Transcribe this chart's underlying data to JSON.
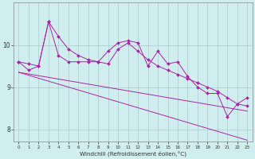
{
  "x": [
    0,
    1,
    2,
    3,
    4,
    5,
    6,
    7,
    8,
    9,
    10,
    11,
    12,
    13,
    14,
    15,
    16,
    17,
    18,
    19,
    20,
    21,
    22,
    23
  ],
  "y_jagged": [
    9.6,
    9.4,
    9.5,
    10.55,
    9.75,
    9.6,
    9.6,
    9.6,
    9.6,
    9.85,
    10.05,
    10.1,
    10.05,
    9.5,
    9.85,
    9.55,
    9.6,
    9.25,
    9.0,
    8.85,
    8.85,
    8.3,
    8.6,
    8.75
  ],
  "y_smooth_peak": [
    9.6,
    9.55,
    9.5,
    10.55,
    10.2,
    9.9,
    9.75,
    9.65,
    9.6,
    9.55,
    9.9,
    10.05,
    9.85,
    9.65,
    9.5,
    9.4,
    9.3,
    9.2,
    9.1,
    9.0,
    8.9,
    8.75,
    8.6,
    8.55
  ],
  "y_regression1": [
    9.35,
    9.31,
    9.27,
    9.23,
    9.19,
    9.15,
    9.11,
    9.07,
    9.03,
    8.99,
    8.95,
    8.91,
    8.87,
    8.83,
    8.79,
    8.75,
    8.71,
    8.67,
    8.63,
    8.59,
    8.55,
    8.51,
    8.47,
    8.43
  ],
  "y_regression2": [
    9.35,
    9.28,
    9.21,
    9.14,
    9.07,
    9.0,
    8.93,
    8.86,
    8.79,
    8.72,
    8.65,
    8.58,
    8.51,
    8.44,
    8.37,
    8.3,
    8.23,
    8.16,
    8.09,
    8.02,
    7.95,
    7.88,
    7.81,
    7.74
  ],
  "bg_color": "#d0eeee",
  "line_color": "#aa22aa",
  "grid_color": "#aacccc",
  "xlabel": "Windchill (Refroidissement éolien,°C)",
  "ylim": [
    7.7,
    11.0
  ],
  "xlim": [
    -0.5,
    23.5
  ],
  "yticks": [
    8,
    9,
    10
  ],
  "xticks": [
    0,
    1,
    2,
    3,
    4,
    5,
    6,
    7,
    8,
    9,
    10,
    11,
    12,
    13,
    14,
    15,
    16,
    17,
    18,
    19,
    20,
    21,
    22,
    23
  ]
}
